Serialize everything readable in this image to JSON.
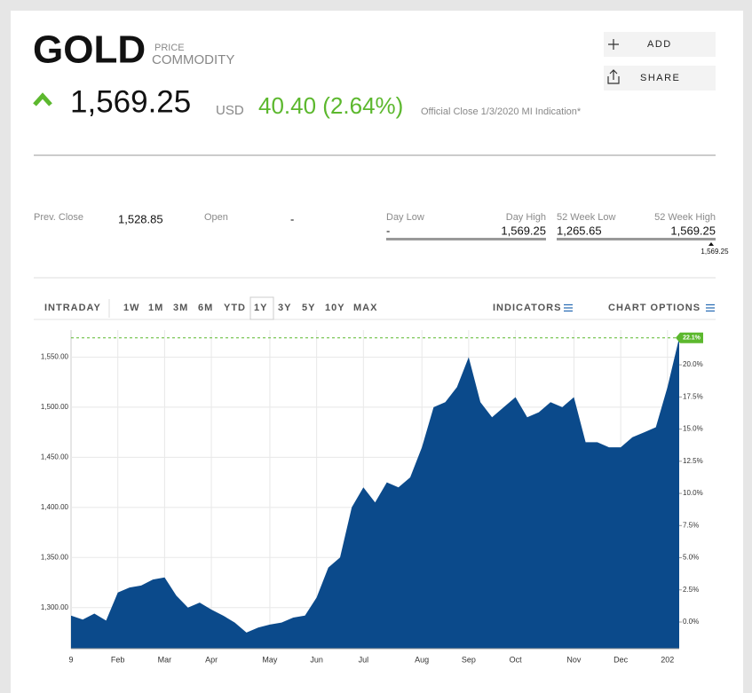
{
  "header": {
    "symbol": "GOLD",
    "kind": "PRICE",
    "category": "COMMODITY",
    "price": "1,569.25",
    "currency": "USD",
    "change": "40.40 (2.64%)",
    "note": "Official Close 1/3/2020 MI Indication*"
  },
  "actions": [
    "ADD",
    "SHARE"
  ],
  "stats": {
    "prev_close_label": "Prev. Close",
    "prev_close": "1,528.85",
    "open_label": "Open",
    "open": "-",
    "day_low_label": "Day Low",
    "day_low": "-",
    "day_high_label": "Day High",
    "day_high": "1,569.25",
    "week52_low_label": "52 Week Low",
    "week52_low": "1,265.65",
    "week52_high_label": "52 Week High",
    "week52_high": "1,569.25",
    "range_marker": "1,569.25"
  },
  "ranges": [
    "INTRADAY",
    "1W",
    "1M",
    "3M",
    "6M",
    "YTD",
    "1Y",
    "3Y",
    "5Y",
    "10Y",
    "MAX"
  ],
  "selected_range": "1Y",
  "tools": [
    "INDICATORS",
    "CHART OPTIONS"
  ],
  "chart_data": {
    "type": "area",
    "color": "#0b4a8b",
    "categories": [
      "9",
      null,
      null,
      null,
      "Feb",
      null,
      null,
      null,
      "Mar",
      null,
      null,
      null,
      "Apr",
      null,
      null,
      null,
      null,
      "May",
      null,
      null,
      null,
      "Jun",
      null,
      null,
      null,
      "Jul",
      null,
      null,
      null,
      null,
      "Aug",
      null,
      null,
      null,
      "Sep",
      null,
      null,
      null,
      "Oct",
      null,
      null,
      null,
      null,
      "Nov",
      null,
      null,
      null,
      "Dec",
      null,
      null,
      null,
      "202",
      null
    ],
    "values": [
      1292,
      1288,
      1294,
      1287,
      1315,
      1320,
      1322,
      1328,
      1330,
      1312,
      1300,
      1305,
      1298,
      1292,
      1285,
      1275,
      1280,
      1283,
      1285,
      1290,
      1292,
      1310,
      1340,
      1350,
      1400,
      1420,
      1405,
      1425,
      1420,
      1430,
      1460,
      1500,
      1505,
      1520,
      1550,
      1505,
      1490,
      1500,
      1510,
      1490,
      1495,
      1505,
      1500,
      1510,
      1465,
      1465,
      1460,
      1460,
      1470,
      1475,
      1480,
      1520,
      1569.25
    ],
    "ylim": [
      1259,
      1577
    ],
    "yticks": [
      {
        "value": 1300,
        "label": "1,300.00"
      },
      {
        "value": 1350,
        "label": "1,350.00"
      },
      {
        "value": 1400,
        "label": "1,400.00"
      },
      {
        "value": 1450,
        "label": "1,450.00"
      },
      {
        "value": 1500,
        "label": "1,500.00"
      },
      {
        "value": 1550,
        "label": "1,550.00"
      }
    ],
    "y2lim": [
      -2.07,
      22.7
    ],
    "y2ticks": [
      {
        "value": 0,
        "label": "0.0%"
      },
      {
        "value": 2.5,
        "label": "2.5%"
      },
      {
        "value": 5,
        "label": "5.0%"
      },
      {
        "value": 7.5,
        "label": "7.5%"
      },
      {
        "value": 10,
        "label": "10.0%"
      },
      {
        "value": 12.5,
        "label": "12.5%"
      },
      {
        "value": 15,
        "label": "15.0%"
      },
      {
        "value": 17.5,
        "label": "17.5%"
      },
      {
        "value": 20,
        "label": "20.0%"
      }
    ],
    "annotation": {
      "value": 22.1,
      "label": "22.1%",
      "color": "#5cb82e"
    },
    "grid": true
  }
}
